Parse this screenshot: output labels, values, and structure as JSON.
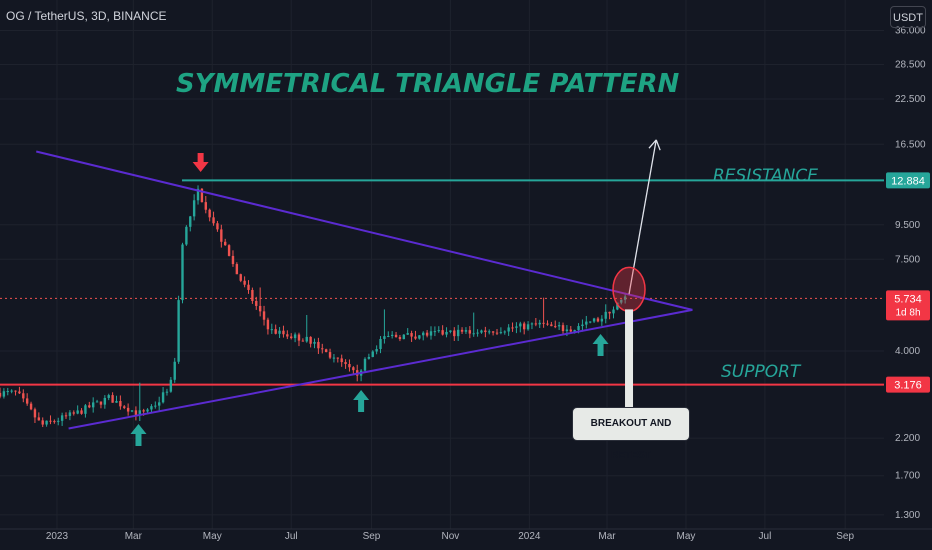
{
  "header": {
    "symbol_line": "OG / TetherUS, 3D, BINANCE"
  },
  "price_scale": {
    "unit": "USDT",
    "ticks": [
      "36.000",
      "28.500",
      "22.500",
      "16.500",
      "9.500",
      "7.500",
      "4.000",
      "2.200",
      "1.700",
      "1.300"
    ],
    "resistance_badge": "12.884",
    "support_badge": "3.176",
    "price_badge": "5.734",
    "countdown_badge": "1d 8h"
  },
  "time_axis": {
    "ticks": [
      "2023",
      "Mar",
      "May",
      "Jul",
      "Sep",
      "Nov",
      "2024",
      "Mar",
      "May",
      "Jul",
      "Sep"
    ]
  },
  "annotations": {
    "title": "SYMMETRICAL TRIANGLE PATTERN",
    "resistance_label": "RESISTANCE",
    "support_label": "SUPPORT",
    "callout": "BREAKOUT AND RETEST"
  },
  "colors": {
    "up": "#26a69a",
    "down": "#ef5350",
    "resistance": "#26a69a",
    "support": "#f23645",
    "triangle": "#5b2bd1",
    "accent_text": "#1ea383"
  },
  "chart_data": {
    "type": "candlestick",
    "title": "SYMMETRICAL TRIANGLE PATTERN",
    "symbol": "OG / TetherUS",
    "timeframe": "3D",
    "exchange": "BINANCE",
    "x_range": [
      "2022-11-18",
      "2024-10-01"
    ],
    "y_range": [
      1.18,
      42
    ],
    "y_scale": "log",
    "resistance": 12.884,
    "support": 3.176,
    "last_price": 5.734,
    "ohlc_approx": [
      {
        "x": "2022-12-01",
        "close": 3.0
      },
      {
        "x": "2022-12-20",
        "close": 2.4
      },
      {
        "x": "2023-01-15",
        "close": 2.6
      },
      {
        "x": "2023-02-10",
        "close": 2.9
      },
      {
        "x": "2023-03-05",
        "close": 2.6
      },
      {
        "x": "2023-03-20",
        "close": 2.8
      },
      {
        "x": "2023-04-01",
        "close": 3.3
      },
      {
        "x": "2023-04-08",
        "close": 8.5
      },
      {
        "x": "2023-04-20",
        "close": 12.0
      },
      {
        "x": "2023-04-30",
        "close": 10.0
      },
      {
        "x": "2023-05-20",
        "close": 6.8
      },
      {
        "x": "2023-06-15",
        "close": 4.6
      },
      {
        "x": "2023-07-15",
        "close": 4.3
      },
      {
        "x": "2023-08-20",
        "close": 3.4
      },
      {
        "x": "2023-09-10",
        "close": 4.4
      },
      {
        "x": "2023-10-20",
        "close": 4.5
      },
      {
        "x": "2023-12-01",
        "close": 4.6
      },
      {
        "x": "2024-01-10",
        "close": 4.8
      },
      {
        "x": "2024-02-01",
        "close": 4.6
      },
      {
        "x": "2024-02-25",
        "close": 5.0
      },
      {
        "x": "2024-03-15",
        "close": 5.734
      }
    ],
    "triangle": {
      "upper": [
        {
          "x": "2022-12-16",
          "y": 15.7
        },
        {
          "x": "2024-05-06",
          "y": 5.3
        }
      ],
      "lower": [
        {
          "x": "2023-01-10",
          "y": 2.35
        },
        {
          "x": "2024-05-06",
          "y": 5.3
        }
      ]
    },
    "markers": [
      {
        "type": "arrow-down",
        "x": "2023-04-22"
      },
      {
        "type": "arrow-up",
        "x": "2023-03-05"
      },
      {
        "type": "arrow-up",
        "x": "2023-08-24"
      },
      {
        "type": "arrow-up",
        "x": "2024-02-25"
      }
    ],
    "projection": {
      "from": {
        "x": "2024-03-18",
        "y": 5.9
      },
      "to": {
        "x": "2024-04-08",
        "y": 17.0
      }
    }
  }
}
